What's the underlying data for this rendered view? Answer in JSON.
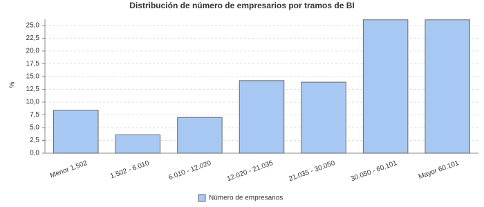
{
  "chart_data": {
    "type": "bar",
    "title": "Distribución de número de empresarios por tramos de BI",
    "y_label": "%",
    "categories": [
      "Menor 1.502",
      "1.502 - 6.010",
      "6.010 - 12.020",
      "12.020 - 21.035",
      "21.035 - 30.050",
      "30.050 - 60.101",
      "Mayor 60.101"
    ],
    "series": [
      {
        "name": "Número de empresarios",
        "color": "#a8c8f4",
        "values": [
          8.4,
          3.6,
          7.0,
          14.2,
          13.9,
          26.1,
          26.1
        ]
      }
    ],
    "ylim": [
      0,
      26.2
    ],
    "yticks": [
      {
        "value": 0,
        "label": "0,0"
      },
      {
        "value": 2.5,
        "label": "2,5"
      },
      {
        "value": 5,
        "label": "5,0"
      },
      {
        "value": 7.5,
        "label": "7,5"
      },
      {
        "value": 10,
        "label": "10,0"
      },
      {
        "value": 12.5,
        "label": "12,5"
      },
      {
        "value": 15,
        "label": "15,0"
      },
      {
        "value": 17.5,
        "label": "17,5"
      },
      {
        "value": 20,
        "label": "20,0"
      },
      {
        "value": 22.5,
        "label": "22,5"
      },
      {
        "value": 25,
        "label": "25,0"
      }
    ],
    "grid": true,
    "legend": "bottom"
  }
}
